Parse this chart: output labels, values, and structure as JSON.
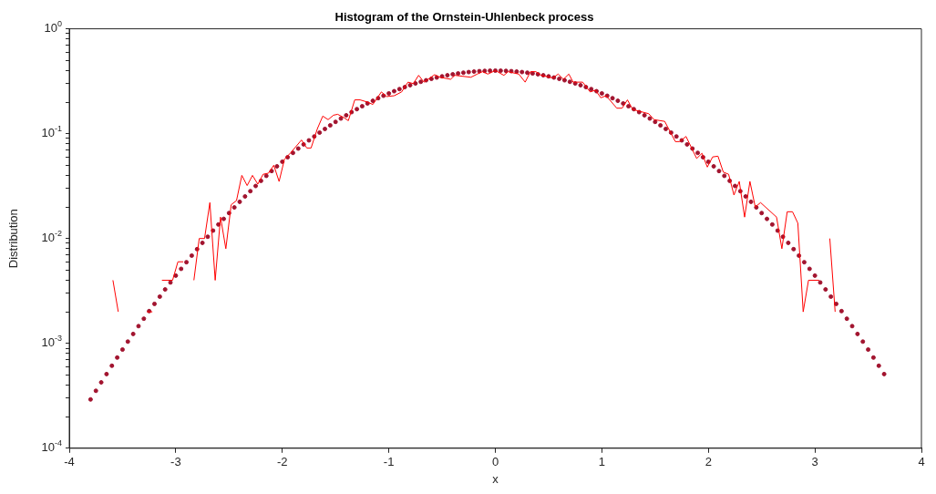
{
  "chart_data": {
    "type": "line",
    "title": "Histogram of the Ornstein-Uhlenbeck process",
    "xlabel": "x",
    "ylabel": "Distribution",
    "log": "y",
    "grid": false,
    "legend": false,
    "xlim": [
      -4,
      4
    ],
    "xticks": [
      -4,
      -3,
      -2,
      -1,
      0,
      1,
      2,
      3,
      4
    ],
    "ylim": [
      0.0001,
      1
    ],
    "yticks": [
      {
        "value": 0.0001,
        "label": "10$^{-4}$"
      },
      {
        "value": 0.0002,
        "label": null
      },
      {
        "value": 0.0003,
        "label": null
      },
      {
        "value": 0.0004,
        "label": null
      },
      {
        "value": 0.0005,
        "label": null
      },
      {
        "value": 0.0006,
        "label": null
      },
      {
        "value": 0.0007,
        "label": null
      },
      {
        "value": 0.0008,
        "label": null
      },
      {
        "value": 0.0009,
        "label": null
      },
      {
        "value": 0.001,
        "label": "10$^{-3}$"
      },
      {
        "value": 0.002,
        "label": null
      },
      {
        "value": 0.003,
        "label": null
      },
      {
        "value": 0.004,
        "label": null
      },
      {
        "value": 0.005,
        "label": null
      },
      {
        "value": 0.006,
        "label": null
      },
      {
        "value": 0.007,
        "label": null
      },
      {
        "value": 0.008,
        "label": null
      },
      {
        "value": 0.009,
        "label": null
      },
      {
        "value": 0.01,
        "label": "10$^{-2}$"
      },
      {
        "value": 0.02,
        "label": null
      },
      {
        "value": 0.03,
        "label": null
      },
      {
        "value": 0.04,
        "label": null
      },
      {
        "value": 0.05,
        "label": null
      },
      {
        "value": 0.06,
        "label": null
      },
      {
        "value": 0.07,
        "label": null
      },
      {
        "value": 0.08,
        "label": null
      },
      {
        "value": 0.09,
        "label": null
      },
      {
        "value": 0.1,
        "label": "10$^{-1}$"
      },
      {
        "value": 0.2,
        "label": null
      },
      {
        "value": 0.3,
        "label": null
      },
      {
        "value": 0.4,
        "label": null
      },
      {
        "value": 0.5,
        "label": null
      },
      {
        "value": 0.6,
        "label": null
      },
      {
        "value": 0.7,
        "label": null
      },
      {
        "value": 0.8,
        "label": null
      },
      {
        "value": 0.9,
        "label": null
      },
      {
        "value": 1,
        "label": "10$^{0}$"
      }
    ],
    "series": [
      {
        "type": "line",
        "color": "#ff0000",
        "line_style": "solid",
        "marker": "none",
        "x": [
          -3.59,
          -3.54,
          -3.4,
          -3.27,
          -3.22,
          -3.17,
          -3.13,
          -3.03,
          -2.98,
          -2.93,
          -2.88,
          -2.83,
          -2.78,
          -2.73,
          -2.68,
          -2.63,
          -2.58,
          -2.53,
          -2.48,
          -2.43,
          -2.38,
          -2.33,
          -2.28,
          -2.23,
          -2.18,
          -2.13,
          -2.08,
          -2.03,
          -1.98,
          -1.92,
          -1.82,
          -1.77,
          -1.73,
          -1.67,
          -1.62,
          -1.57,
          -1.52,
          -1.48,
          -1.42,
          -1.38,
          -1.32,
          -1.27,
          -1.2,
          -1.15,
          -1.07,
          -1.02,
          -0.95,
          -0.88,
          -0.82,
          -0.77,
          -0.72,
          -0.67,
          -0.57,
          -0.52,
          -0.42,
          -0.38,
          -0.23,
          -0.17,
          -0.12,
          -0.07,
          0,
          0.08,
          0.12,
          0.22,
          0.28,
          0.33,
          0.38,
          0.43,
          0.54,
          0.59,
          0.64,
          0.69,
          0.73,
          0.82,
          0.89,
          0.94,
          0.99,
          1.04,
          1.14,
          1.19,
          1.24,
          1.29,
          1.44,
          1.49,
          1.59,
          1.69,
          1.73,
          1.79,
          1.89,
          1.94,
          1.99,
          2.04,
          2.09,
          2.14,
          2.19,
          2.24,
          2.29,
          2.34,
          2.39,
          2.44,
          2.49,
          2.64,
          2.69,
          2.74,
          2.79,
          2.84,
          2.89,
          2.94,
          3.04,
          3.09,
          3.14,
          3.19
        ],
        "values": [
          0.004,
          0.002,
          null,
          0.002,
          0.002,
          null,
          0.004,
          0.004,
          0.006,
          0.006,
          null,
          0.004,
          0.01,
          0.01,
          0.022,
          0.004,
          0.016,
          0.008,
          0.021,
          0.023,
          0.04,
          0.032,
          0.04,
          0.033,
          0.041,
          0.042,
          0.05,
          0.035,
          0.057,
          0.066,
          0.087,
          0.073,
          0.073,
          0.112,
          0.147,
          0.136,
          0.15,
          0.153,
          0.142,
          0.133,
          0.21,
          0.21,
          0.2,
          0.19,
          0.25,
          0.226,
          0.23,
          0.25,
          0.31,
          0.3,
          0.36,
          0.31,
          0.365,
          0.345,
          0.33,
          0.36,
          0.345,
          0.37,
          0.39,
          0.37,
          0.4,
          0.36,
          0.39,
          0.37,
          0.31,
          0.39,
          0.39,
          0.36,
          0.34,
          0.37,
          0.33,
          0.37,
          0.31,
          0.31,
          0.25,
          0.26,
          0.22,
          0.23,
          0.175,
          0.175,
          0.21,
          0.17,
          0.155,
          0.136,
          0.131,
          0.084,
          0.084,
          0.094,
          0.058,
          0.065,
          0.048,
          0.06,
          0.061,
          0.043,
          0.041,
          0.026,
          0.035,
          0.016,
          0.035,
          0.02,
          0.022,
          0.016,
          0.008,
          0.018,
          0.018,
          0.014,
          0.002,
          0.004,
          0.004,
          null,
          0.01,
          0.002
        ]
      },
      {
        "type": "scatter",
        "color": "#a2142f",
        "marker": "circle",
        "x": [
          -3.8,
          -3.75,
          -3.7,
          -3.65,
          -3.6,
          -3.55,
          -3.5,
          -3.45,
          -3.4,
          -3.35,
          -3.3,
          -3.25,
          -3.2,
          -3.15,
          -3.1,
          -3.05,
          -3,
          -2.95,
          -2.9,
          -2.85,
          -2.8,
          -2.75,
          -2.7,
          -2.65,
          -2.6,
          -2.55,
          -2.5,
          -2.45,
          -2.4,
          -2.35,
          -2.3,
          -2.25,
          -2.2,
          -2.15,
          -2.1,
          -2.05,
          -2,
          -1.95,
          -1.9,
          -1.85,
          -1.8,
          -1.75,
          -1.7,
          -1.65,
          -1.6,
          -1.55,
          -1.5,
          -1.45,
          -1.4,
          -1.35,
          -1.3,
          -1.25,
          -1.2,
          -1.15,
          -1.1,
          -1.05,
          -1,
          -0.95,
          -0.9,
          -0.85,
          -0.8,
          -0.75,
          -0.7,
          -0.65,
          -0.6,
          -0.55,
          -0.5,
          -0.45,
          -0.4,
          -0.35,
          -0.3,
          -0.25,
          -0.2,
          -0.15,
          -0.1,
          -0.05,
          0,
          0.05,
          0.1,
          0.15,
          0.2,
          0.25,
          0.3,
          0.35,
          0.4,
          0.45,
          0.5,
          0.55,
          0.6,
          0.65,
          0.7,
          0.75,
          0.8,
          0.85,
          0.9,
          0.95,
          1,
          1.05,
          1.1,
          1.15,
          1.2,
          1.25,
          1.3,
          1.35,
          1.4,
          1.45,
          1.5,
          1.55,
          1.6,
          1.65,
          1.7,
          1.75,
          1.8,
          1.85,
          1.9,
          1.95,
          2,
          2.05,
          2.1,
          2.15,
          2.2,
          2.25,
          2.3,
          2.35,
          2.4,
          2.45,
          2.5,
          2.55,
          2.6,
          2.65,
          2.7,
          2.75,
          2.8,
          2.85,
          2.9,
          2.95,
          3,
          3.05,
          3.1,
          3.15,
          3.2,
          3.25,
          3.3,
          3.35,
          3.4,
          3.45,
          3.5,
          3.55,
          3.6,
          3.65
        ],
        "values": [
          0.000292,
          0.000353,
          0.000425,
          0.00051,
          0.000612,
          0.000732,
          0.000873,
          0.00104,
          0.00123,
          0.00146,
          0.00172,
          0.00203,
          0.00238,
          0.00279,
          0.00327,
          0.00381,
          0.00443,
          0.00514,
          0.00595,
          0.00687,
          0.00792,
          0.00909,
          0.0104,
          0.0119,
          0.0136,
          0.0154,
          0.0175,
          0.0198,
          0.0224,
          0.0252,
          0.0283,
          0.0317,
          0.0355,
          0.0396,
          0.044,
          0.0488,
          0.054,
          0.0596,
          0.0656,
          0.0721,
          0.079,
          0.0863,
          0.094,
          0.1023,
          0.1109,
          0.12,
          0.1295,
          0.1394,
          0.1497,
          0.1604,
          0.1714,
          0.1826,
          0.1942,
          0.2059,
          0.2179,
          0.2299,
          0.242,
          0.2541,
          0.2661,
          0.278,
          0.2897,
          0.3011,
          0.3123,
          0.323,
          0.3332,
          0.3429,
          0.3521,
          0.3605,
          0.3683,
          0.3752,
          0.3814,
          0.3867,
          0.391,
          0.3945,
          0.397,
          0.3984,
          0.3989,
          0.3984,
          0.397,
          0.3945,
          0.391,
          0.3867,
          0.3814,
          0.3752,
          0.3683,
          0.3605,
          0.3521,
          0.3429,
          0.3332,
          0.323,
          0.3123,
          0.3011,
          0.2897,
          0.278,
          0.2661,
          0.2541,
          0.242,
          0.2299,
          0.2179,
          0.2059,
          0.1942,
          0.1826,
          0.1714,
          0.1604,
          0.1497,
          0.1394,
          0.1295,
          0.12,
          0.1109,
          0.1023,
          0.094,
          0.0863,
          0.079,
          0.0721,
          0.0656,
          0.0596,
          0.054,
          0.0488,
          0.044,
          0.0396,
          0.0355,
          0.0317,
          0.0283,
          0.0252,
          0.0224,
          0.0198,
          0.0175,
          0.0154,
          0.0136,
          0.0119,
          0.0104,
          0.00909,
          0.00792,
          0.00687,
          0.00595,
          0.00514,
          0.00443,
          0.00381,
          0.00327,
          0.00279,
          0.00238,
          0.00203,
          0.00172,
          0.00146,
          0.00123,
          0.00104,
          0.000873,
          0.000732,
          0.000612,
          0.00051
        ]
      }
    ]
  }
}
